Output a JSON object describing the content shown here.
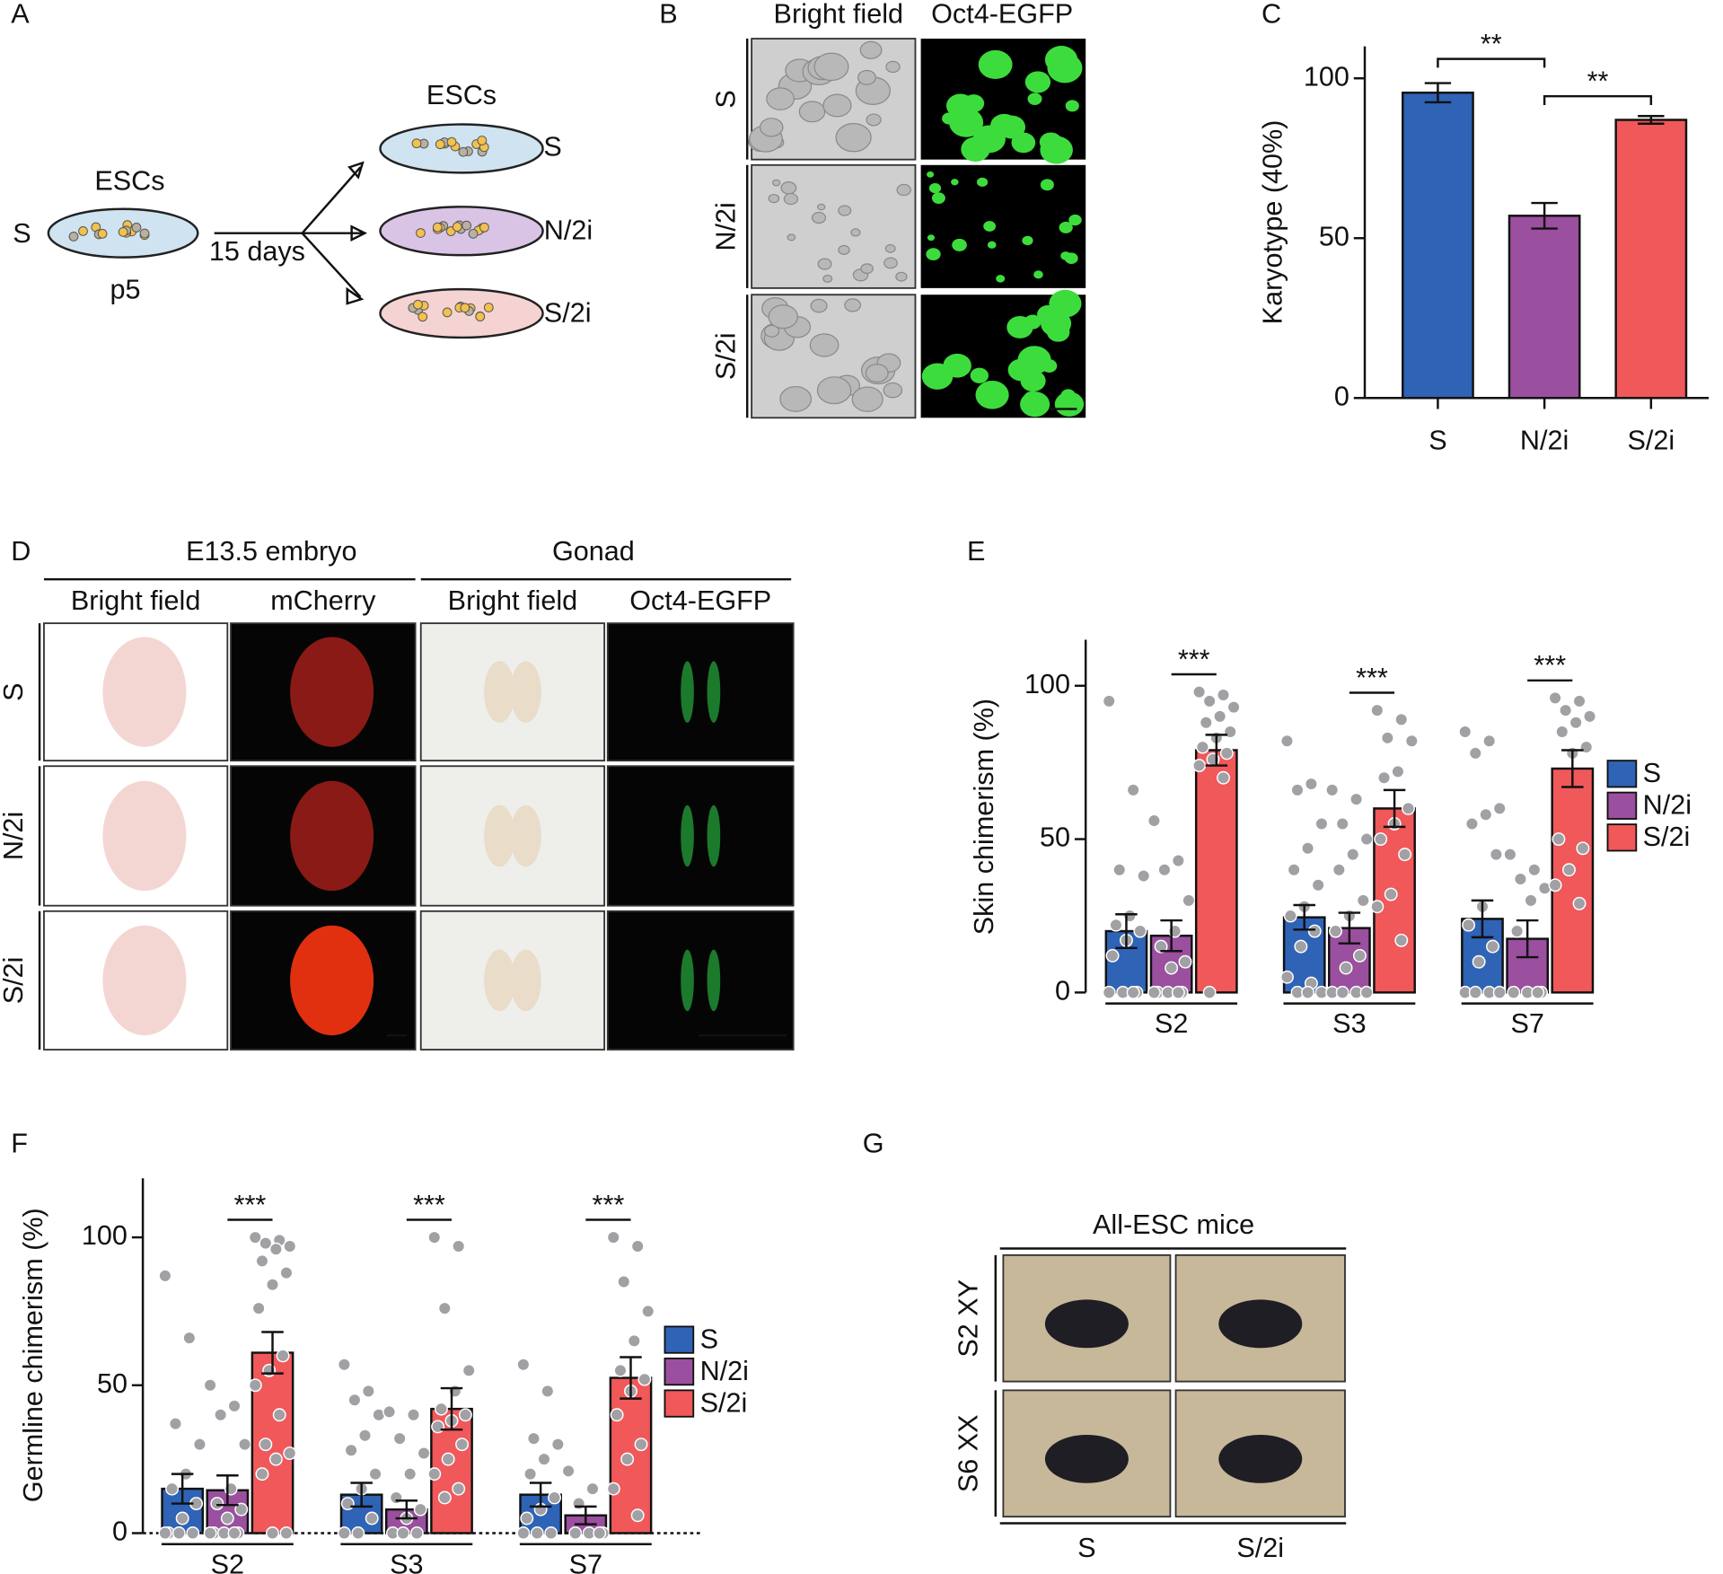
{
  "panel_labels": [
    "A",
    "B",
    "C",
    "D",
    "E",
    "F",
    "G"
  ],
  "panel_a": {
    "source_label": "ESCs",
    "source_condition": "S",
    "passage": "p5",
    "duration": "15 days",
    "target_label": "ESCs",
    "conditions": [
      "S",
      "N/2i",
      "S/2i"
    ]
  },
  "panel_b": {
    "columns": [
      "Bright field",
      "Oct4-EGFP"
    ],
    "rows": [
      "S",
      "N/2i",
      "S/2i"
    ]
  },
  "panel_d": {
    "groups": [
      "E13.5 embryo",
      "Gonad"
    ],
    "columns": [
      "Bright field",
      "mCherry",
      "Bright field",
      "Oct4-EGFP"
    ],
    "rows": [
      "S",
      "N/2i",
      "S/2i"
    ]
  },
  "panel_g": {
    "title": "All-ESC mice",
    "rows": [
      "S2 XY",
      "S6 XX"
    ],
    "columns": [
      "S",
      "S/2i"
    ]
  },
  "chart_data": [
    {
      "type": "bar",
      "ylabel": "Karyotype (40%)",
      "categories": [
        "S",
        "N/2i",
        "S/2i"
      ],
      "values": [
        95.5,
        57,
        87
      ],
      "errors": [
        3,
        4,
        1.2
      ],
      "colors": [
        "#2e63b6",
        "#9b4f9f",
        "#f0585a"
      ],
      "ylim": [
        0,
        110
      ],
      "yticks": [
        0,
        50,
        100
      ],
      "significance": [
        {
          "label": "**",
          "between": [
            "S",
            "N/2i"
          ]
        },
        {
          "label": "**",
          "between": [
            "N/2i",
            "S/2i"
          ]
        }
      ]
    },
    {
      "type": "bar",
      "ylabel": "Skin chimerism (%)",
      "categories": [
        "S2",
        "S3",
        "S7"
      ],
      "point_color": "#a0a0a5",
      "series": [
        {
          "name": "S",
          "color": "#2e63b6",
          "values": [
            20,
            24.5,
            24
          ],
          "errors": [
            5.5,
            4,
            6
          ],
          "points": [
            [
              95,
              66,
              40,
              38,
              25,
              22,
              20,
              17,
              12,
              0,
              0,
              0,
              0
            ],
            [
              82,
              68,
              66,
              55,
              47,
              40,
              35,
              28,
              25,
              20,
              15,
              5,
              3,
              0,
              0,
              0
            ],
            [
              85,
              82,
              78,
              60,
              58,
              55,
              45,
              28,
              22,
              15,
              10,
              0,
              0,
              0,
              0
            ]
          ]
        },
        {
          "name": "N/2i",
          "color": "#9b4f9f",
          "values": [
            18.5,
            21,
            17.5
          ],
          "errors": [
            5,
            5,
            6
          ],
          "points": [
            [
              56,
              43,
              40,
              30,
              20,
              15,
              10,
              8,
              0,
              0,
              0,
              0,
              0
            ],
            [
              66,
              63,
              55,
              50,
              45,
              40,
              30,
              25,
              20,
              12,
              8,
              0,
              0,
              0,
              0
            ],
            [
              45,
              40,
              37,
              34,
              30,
              20,
              0,
              0,
              0,
              0
            ]
          ]
        },
        {
          "name": "S/2i",
          "color": "#f0585a",
          "values": [
            79,
            60,
            73
          ],
          "errors": [
            5,
            6,
            6
          ],
          "points": [
            [
              98,
              97,
              95,
              93,
              90,
              88,
              85,
              83,
              80,
              78,
              76,
              74,
              70,
              0
            ],
            [
              92,
              89,
              83,
              82,
              72,
              70,
              60,
              55,
              50,
              45,
              32,
              28,
              17
            ],
            [
              96,
              95,
              92,
              90,
              88,
              85,
              80,
              78,
              50,
              47,
              40,
              35,
              29
            ]
          ]
        }
      ],
      "ylim": [
        0,
        115
      ],
      "yticks": [
        0,
        50,
        100
      ],
      "legend": "right",
      "significance": [
        {
          "label": "***",
          "category": "S2",
          "between": [
            "N/2i",
            "S/2i"
          ]
        },
        {
          "label": "***",
          "category": "S3",
          "between": [
            "N/2i",
            "S/2i"
          ]
        },
        {
          "label": "***",
          "category": "S7",
          "between": [
            "N/2i",
            "S/2i"
          ]
        }
      ]
    },
    {
      "type": "bar",
      "ylabel": "Germline chimerism (%)",
      "categories": [
        "S2",
        "S3",
        "S7"
      ],
      "point_color": "#a0a0a5",
      "series": [
        {
          "name": "S",
          "color": "#2e63b6",
          "values": [
            15,
            13,
            13
          ],
          "errors": [
            5,
            4,
            4
          ],
          "points": [
            [
              87,
              66,
              37,
              30,
              20,
              15,
              10,
              5,
              0,
              0,
              0,
              0
            ],
            [
              57,
              48,
              45,
              40,
              33,
              28,
              20,
              15,
              10,
              5,
              0,
              0
            ],
            [
              57,
              48,
              32,
              30,
              25,
              20,
              12,
              8,
              5,
              0,
              0,
              0
            ]
          ]
        },
        {
          "name": "N/2i",
          "color": "#9b4f9f",
          "values": [
            14.5,
            8,
            6
          ],
          "errors": [
            5,
            3,
            3
          ],
          "points": [
            [
              50,
              43,
              40,
              30,
              15,
              10,
              8,
              5,
              0,
              0,
              0,
              0,
              0
            ],
            [
              41,
              40,
              32,
              27,
              20,
              12,
              8,
              5,
              0,
              0,
              0
            ],
            [
              21,
              15,
              10,
              0,
              0,
              0,
              0
            ]
          ]
        },
        {
          "name": "S/2i",
          "color": "#f0585a",
          "values": [
            61,
            42,
            52.5
          ],
          "errors": [
            7,
            7,
            7
          ],
          "points": [
            [
              100,
              99,
              98,
              97,
              96,
              92,
              88,
              84,
              76,
              60,
              55,
              50,
              40,
              30,
              27,
              25,
              20,
              0,
              0
            ],
            [
              100,
              97,
              76,
              55,
              48,
              42,
              40,
              38,
              36,
              30,
              25,
              20,
              15,
              12
            ],
            [
              100,
              97,
              85,
              75,
              65,
              55,
              52,
              48,
              40,
              30,
              25,
              15,
              6
            ]
          ]
        }
      ],
      "ylim": [
        0,
        120
      ],
      "yticks": [
        0,
        50,
        100
      ],
      "legend": "right",
      "significance": [
        {
          "label": "***",
          "category": "S2",
          "between": [
            "N/2i",
            "S/2i"
          ]
        },
        {
          "label": "***",
          "category": "S3",
          "between": [
            "N/2i",
            "S/2i"
          ]
        },
        {
          "label": "***",
          "category": "S7",
          "between": [
            "N/2i",
            "S/2i"
          ]
        }
      ]
    }
  ]
}
